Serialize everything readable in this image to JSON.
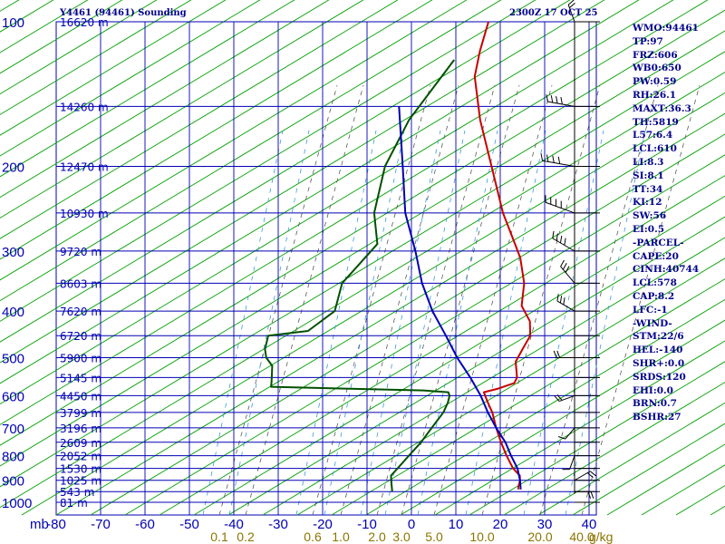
{
  "header": {
    "station_title": "Y4461 (94461) Sounding",
    "time_label": "2300Z 17 OCT 25"
  },
  "indices": [
    "WMO:94461",
    "TP:97",
    "FRZ:606",
    "WB0:650",
    "PW:0.59",
    "RH:26.1",
    "MAXT:36.3",
    "TH:5819",
    "L57:6.4",
    "LCL:610",
    "LI:8.3",
    "SI:8.1",
    "TT:34",
    "KI:12",
    "SW:56",
    "EI:0.5",
    "-PARCEL-",
    "CAPE:20",
    "CINH:40744",
    "LCL:578",
    "CAP:8.2",
    "LFC:-1",
    "-WIND-",
    "STM:22/6",
    "HEL:-140",
    "SHR+:0.0",
    "SRDS:120",
    "EHI:0.0",
    "BRN:0.7",
    "BSHR:27"
  ],
  "chart_data": {
    "type": "line",
    "title": "Y4461 (94461) Sounding",
    "pressure_axis_unit": "mb",
    "pressure_levels": [
      100,
      200,
      300,
      400,
      500,
      600,
      700,
      800,
      900,
      1000
    ],
    "pressure_range": [
      100,
      1050
    ],
    "temperature_axis_ticks": [
      -80,
      -70,
      -60,
      -50,
      -40,
      -30,
      -20,
      -10,
      0,
      10,
      20,
      30,
      40
    ],
    "temperature_range": [
      -80,
      40
    ],
    "mixing_ratio_labels": [
      "0.1",
      "0.2",
      "0.6",
      "1.0",
      "2.0",
      "3.0",
      "5.0",
      "10.0",
      "20.0",
      "40.0"
    ],
    "mixing_ratio_unit": "g/kg",
    "height_labels": [
      {
        "p": 100,
        "label": "16620 m"
      },
      {
        "p": 150,
        "label": "14260 m"
      },
      {
        "p": 200,
        "label": "12470 m"
      },
      {
        "p": 250,
        "label": "10930 m"
      },
      {
        "p": 300,
        "label": "9720 m"
      },
      {
        "p": 350,
        "label": "8603 m"
      },
      {
        "p": 400,
        "label": "7620 m"
      },
      {
        "p": 450,
        "label": "6720 m"
      },
      {
        "p": 500,
        "label": "5900 m"
      },
      {
        "p": 550,
        "label": "5145 m"
      },
      {
        "p": 600,
        "label": "4450 m"
      },
      {
        "p": 650,
        "label": "3799 m"
      },
      {
        "p": 700,
        "label": "3196 m"
      },
      {
        "p": 750,
        "label": "2609 m"
      },
      {
        "p": 800,
        "label": "2052 m"
      },
      {
        "p": 850,
        "label": "1530 m"
      },
      {
        "p": 900,
        "label": "1025 m"
      },
      {
        "p": 950,
        "label": "543 m"
      },
      {
        "p": 1000,
        "label": "81 m"
      }
    ],
    "series": [
      {
        "name": "temperature",
        "color": "#c80000",
        "points": [
          [
            100,
            -80
          ],
          [
            115,
            -76
          ],
          [
            130,
            -72
          ],
          [
            160,
            -62
          ],
          [
            200,
            -50
          ],
          [
            250,
            -38
          ],
          [
            290,
            -29
          ],
          [
            310,
            -25
          ],
          [
            350,
            -19
          ],
          [
            390,
            -15
          ],
          [
            420,
            -10
          ],
          [
            450,
            -7
          ],
          [
            480,
            -6
          ],
          [
            510,
            -5
          ],
          [
            550,
            -1.5
          ],
          [
            565,
            -1
          ],
          [
            580,
            -3.5
          ],
          [
            590,
            -6
          ],
          [
            595,
            -5.5
          ],
          [
            620,
            -3
          ],
          [
            650,
            0
          ],
          [
            700,
            4
          ],
          [
            750,
            8
          ],
          [
            800,
            12
          ],
          [
            850,
            16
          ],
          [
            880,
            19
          ],
          [
            900,
            20
          ],
          [
            930,
            21
          ],
          [
            940,
            21.5
          ]
        ]
      },
      {
        "name": "dewpoint",
        "color": "#005000",
        "points": [
          [
            120,
            -80
          ],
          [
            160,
            -78
          ],
          [
            200,
            -74
          ],
          [
            250,
            -67
          ],
          [
            290,
            -60
          ],
          [
            300,
            -60
          ],
          [
            350,
            -60
          ],
          [
            400,
            -56
          ],
          [
            440,
            -58
          ],
          [
            450,
            -66
          ],
          [
            480,
            -64
          ],
          [
            500,
            -62
          ],
          [
            520,
            -59
          ],
          [
            560,
            -56
          ],
          [
            575,
            -55
          ],
          [
            580,
            -38
          ],
          [
            585,
            -20
          ],
          [
            590,
            -14
          ],
          [
            600,
            -13
          ],
          [
            620,
            -12
          ],
          [
            650,
            -11
          ],
          [
            700,
            -10.5
          ],
          [
            750,
            -10
          ],
          [
            800,
            -10
          ],
          [
            850,
            -10
          ],
          [
            880,
            -10
          ],
          [
            900,
            -9
          ],
          [
            920,
            -8
          ],
          [
            950,
            -6.5
          ]
        ]
      },
      {
        "name": "parcel",
        "color": "#0000b4",
        "points": [
          [
            150,
            -83
          ],
          [
            200,
            -70
          ],
          [
            250,
            -60
          ],
          [
            300,
            -50
          ],
          [
            350,
            -42
          ],
          [
            400,
            -34
          ],
          [
            450,
            -26
          ],
          [
            500,
            -19
          ],
          [
            550,
            -12
          ],
          [
            600,
            -6
          ],
          [
            650,
            -1
          ],
          [
            700,
            4
          ],
          [
            750,
            9
          ],
          [
            800,
            13
          ],
          [
            850,
            17
          ],
          [
            900,
            20
          ],
          [
            940,
            22
          ]
        ]
      }
    ],
    "wind_profile": [
      {
        "p": 100,
        "dir": 340,
        "spd": 20
      },
      {
        "p": 150,
        "dir": 280,
        "spd": 45
      },
      {
        "p": 200,
        "dir": 280,
        "spd": 60
      },
      {
        "p": 250,
        "dir": 290,
        "spd": 55
      },
      {
        "p": 300,
        "dir": 300,
        "spd": 40
      },
      {
        "p": 350,
        "dir": 320,
        "spd": 30
      },
      {
        "p": 400,
        "dir": 300,
        "spd": 25
      },
      {
        "p": 500,
        "dir": 270,
        "spd": 20
      },
      {
        "p": 600,
        "dir": 250,
        "spd": 15
      },
      {
        "p": 700,
        "dir": 220,
        "spd": 10
      },
      {
        "p": 800,
        "dir": 200,
        "spd": 10
      },
      {
        "p": 900,
        "dir": 60,
        "spd": 20
      },
      {
        "p": 950,
        "dir": 90,
        "spd": 15
      }
    ]
  }
}
